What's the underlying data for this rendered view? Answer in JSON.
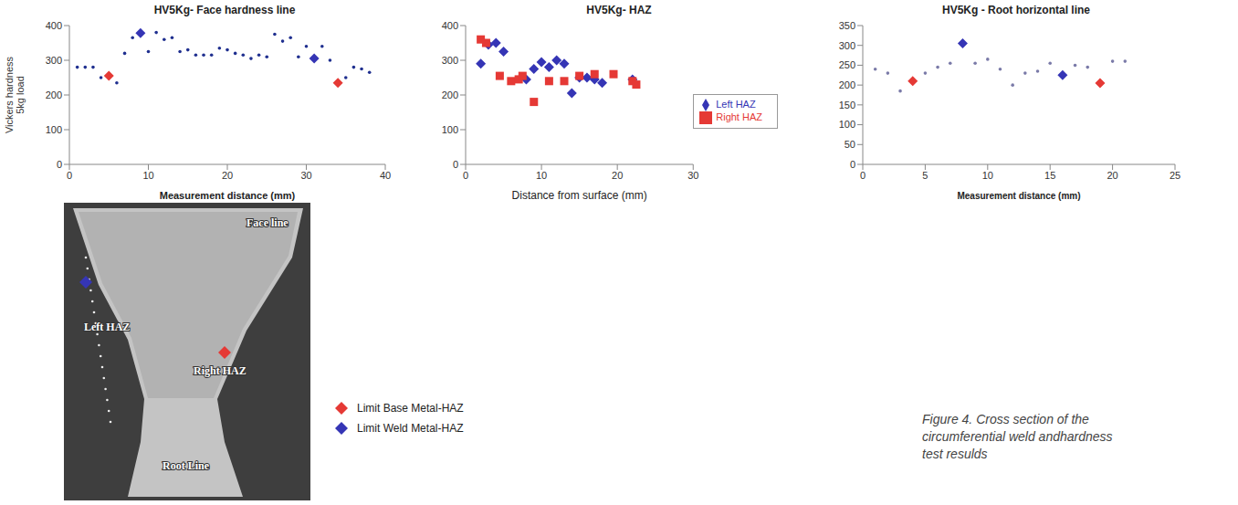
{
  "chart_data": [
    {
      "type": "scatter",
      "title": "HV5Kg- Face hardness line",
      "x_label": "Measurement distance (mm)",
      "y_label": "Vickers hardness 5kg load",
      "xlim": [
        0,
        40
      ],
      "xticks": [
        0,
        10,
        20,
        30,
        40
      ],
      "ylim": [
        0,
        400
      ],
      "yticks": [
        0,
        100,
        200,
        300,
        400
      ],
      "grid": false,
      "series": [
        {
          "color": "#1f2f8f",
          "marker": "circle",
          "x": [
            1,
            2,
            3,
            4,
            6,
            7,
            8,
            10,
            11,
            12,
            13,
            14,
            15,
            16,
            17,
            18,
            19,
            20,
            21,
            22,
            23,
            24,
            25,
            26,
            27,
            28,
            29,
            30,
            32,
            33,
            35,
            36,
            37,
            38
          ],
          "values": [
            280,
            280,
            280,
            250,
            235,
            320,
            365,
            325,
            380,
            360,
            365,
            325,
            330,
            315,
            315,
            315,
            335,
            330,
            320,
            315,
            305,
            315,
            310,
            375,
            355,
            365,
            310,
            340,
            340,
            300,
            250,
            280,
            275,
            265
          ]
        },
        {
          "color": "#e53935",
          "marker": "diamond",
          "x": [
            5,
            34
          ],
          "values": [
            255,
            235
          ]
        },
        {
          "color": "#3535b5",
          "marker": "diamond",
          "x": [
            9,
            31
          ],
          "values": [
            378,
            305
          ]
        }
      ]
    },
    {
      "type": "scatter",
      "title": "HV5Kg- HAZ",
      "x_label": "Distance from surface (mm)",
      "xlim": [
        0,
        30
      ],
      "xticks": [
        0,
        10,
        20,
        30
      ],
      "ylim": [
        0,
        400
      ],
      "yticks": [
        0,
        100,
        200,
        300,
        400
      ],
      "grid": false,
      "legend": "right",
      "series": [
        {
          "name": "Left HAZ",
          "color": "#3535b5",
          "marker": "diamond",
          "x": [
            2,
            3,
            4,
            5,
            8,
            9,
            10,
            11,
            12,
            13,
            14,
            15,
            16,
            17,
            18,
            22
          ],
          "values": [
            290,
            345,
            350,
            325,
            245,
            275,
            295,
            280,
            300,
            290,
            205,
            250,
            250,
            245,
            235,
            245
          ]
        },
        {
          "name": "Right HAZ",
          "color": "#e53935",
          "marker": "square",
          "x": [
            2,
            2.7,
            4.5,
            6,
            7,
            7.5,
            9,
            11,
            13,
            15,
            17,
            19.5,
            22,
            22.5
          ],
          "values": [
            360,
            350,
            255,
            240,
            245,
            255,
            180,
            240,
            240,
            255,
            260,
            260,
            240,
            230
          ]
        }
      ]
    },
    {
      "type": "scatter",
      "title": "HV5Kg - Root horizontal line",
      "x_label": "Measurement distance (mm)",
      "xlim": [
        0,
        25
      ],
      "xticks": [
        0,
        5,
        10,
        15,
        20,
        25
      ],
      "ylim": [
        0,
        350
      ],
      "yticks": [
        0,
        50,
        100,
        150,
        200,
        250,
        300,
        350
      ],
      "grid": false,
      "series": [
        {
          "color": "#7a7aa8",
          "marker": "circle",
          "x": [
            1,
            2,
            3,
            5,
            6,
            7,
            9,
            10,
            11,
            12,
            13,
            14,
            15,
            17,
            18,
            20,
            21
          ],
          "values": [
            240,
            230,
            185,
            230,
            245,
            255,
            255,
            265,
            240,
            200,
            230,
            235,
            255,
            250,
            245,
            260,
            260
          ]
        },
        {
          "color": "#e53935",
          "marker": "diamond",
          "x": [
            4,
            19
          ],
          "values": [
            210,
            205
          ]
        },
        {
          "color": "#3535b5",
          "marker": "diamond",
          "x": [
            8,
            16
          ],
          "values": [
            305,
            225
          ]
        }
      ]
    }
  ],
  "cross_section": {
    "face": "Face line",
    "left": "Left HAZ",
    "right": "Right HAZ",
    "root": "Root Line"
  },
  "legend": [
    {
      "label": "Limit Base Metal-HAZ",
      "color": "#e53935",
      "marker": "diamond"
    },
    {
      "label": "Limit Weld Metal-HAZ",
      "color": "#3535b5",
      "marker": "diamond"
    }
  ],
  "caption": "Figure 4. Cross section of the circumferential weld andhardness test resulds"
}
